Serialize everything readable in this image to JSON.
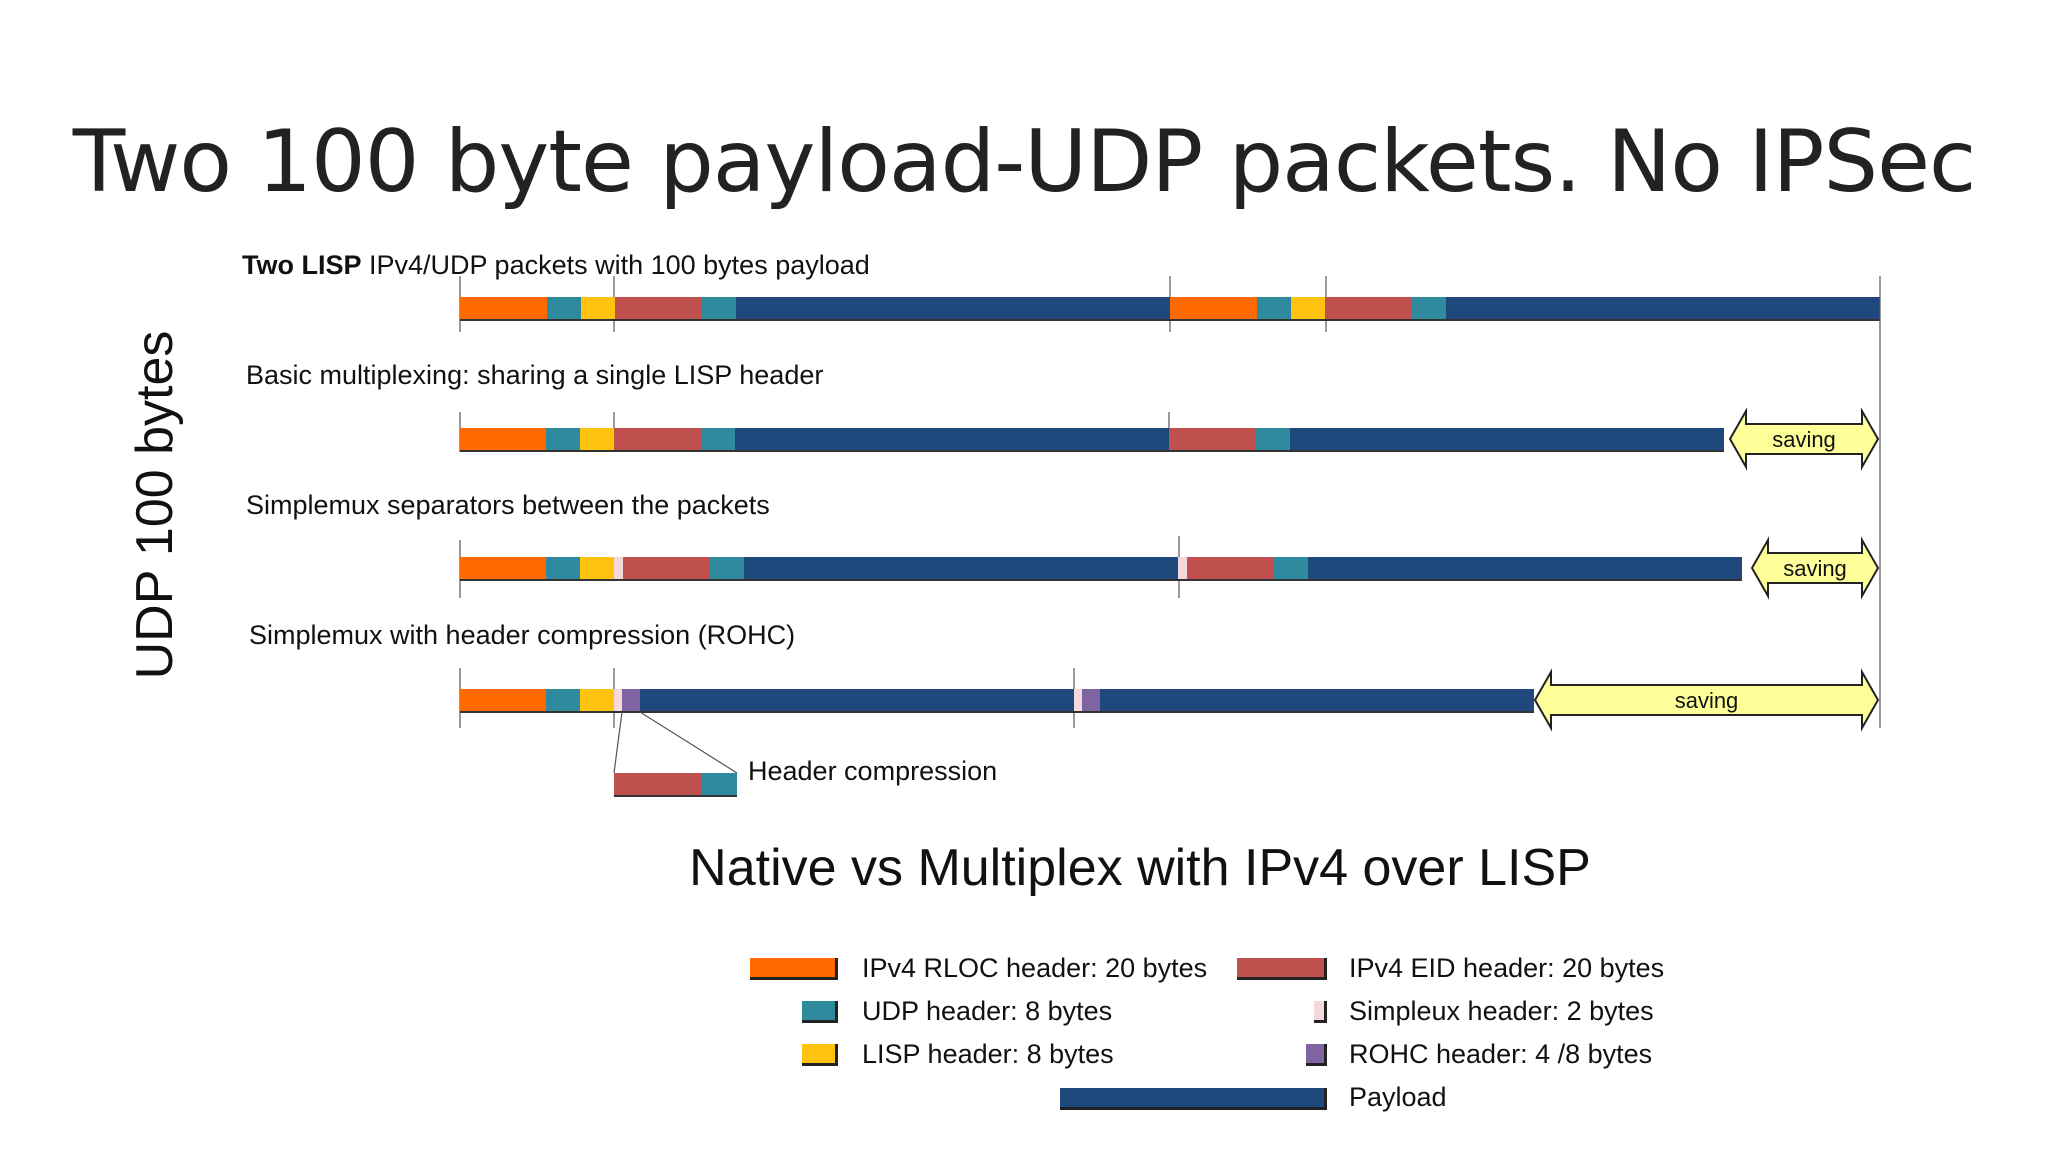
{
  "title": "Two 100 byte payload-UDP packets. No IPSec",
  "side_label": "UDP 100 bytes",
  "rows": [
    {
      "label_bold": "Two LISP",
      "label_rest": " IPv4/UDP packets with 100 bytes payload"
    },
    {
      "label_bold": "",
      "label_rest": "Basic multiplexing: sharing a single LISP header",
      "saving": "saving"
    },
    {
      "label_bold": "",
      "label_rest": "Simplemux separators between the packets",
      "saving": "saving"
    },
    {
      "label_bold": "",
      "label_rest": "Simplemux with header compression (ROHC)",
      "saving": "saving"
    }
  ],
  "header_compression_label": "Header compression",
  "subtitle": "Native vs Multiplex with IPv4 over LISP",
  "colors": {
    "ipv4_rloc": "#ff6a00",
    "udp": "#2e8a9c",
    "lisp": "#ffc20e",
    "ipv4_eid": "#c0504d",
    "simplemux": "#f4d8dc",
    "rohc": "#8064a2",
    "payload": "#1f497d",
    "saving": "#ffff99"
  },
  "legend": [
    {
      "key": "ipv4_rloc",
      "label": "IPv4 RLOC header: 20 bytes"
    },
    {
      "key": "udp",
      "label": "UDP header: 8 bytes"
    },
    {
      "key": "lisp",
      "label": "LISP header: 8 bytes"
    },
    {
      "key": "ipv4_eid",
      "label": "IPv4 EID header: 20 bytes"
    },
    {
      "key": "simplemux",
      "label": "Simpleux header: 2 bytes"
    },
    {
      "key": "rohc",
      "label": "ROHC header: 4 /8 bytes"
    },
    {
      "key": "payload",
      "label": "Payload"
    }
  ]
}
